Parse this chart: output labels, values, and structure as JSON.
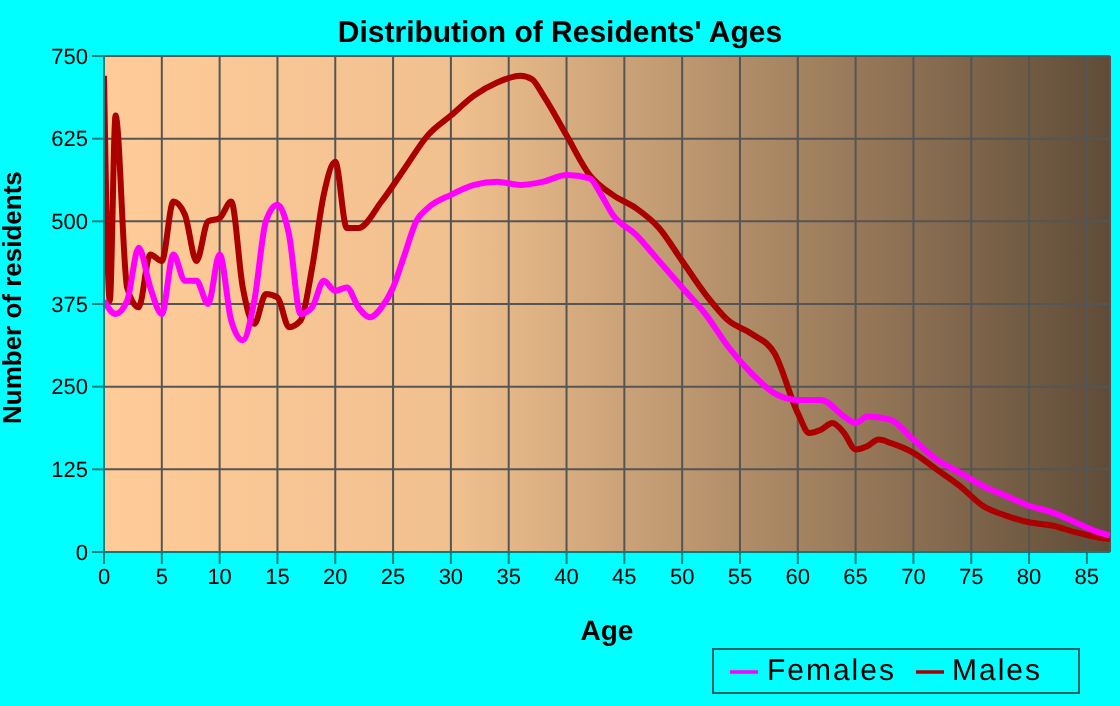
{
  "chart_data": {
    "type": "line",
    "title": "Distribution of Residents' Ages",
    "xlabel": "Age",
    "ylabel": "Number of residents",
    "xlim": [
      0,
      87
    ],
    "xticks": [
      0,
      5,
      10,
      15,
      20,
      25,
      30,
      35,
      40,
      45,
      50,
      55,
      60,
      65,
      70,
      75,
      80,
      85
    ],
    "ylim": [
      0,
      750
    ],
    "yticks": [
      0,
      125,
      250,
      375,
      500,
      625,
      750
    ],
    "grid": true,
    "legend": "bottom right",
    "marker": "none",
    "line_style": "solid",
    "series": [
      {
        "name": "Males",
        "color": "#aa0000",
        "x": [
          0,
          0.5,
          1,
          2,
          3,
          4,
          5,
          6,
          7,
          8,
          9,
          10,
          11,
          12,
          13,
          14,
          15,
          16,
          17,
          18,
          19,
          20,
          21,
          22,
          24,
          26,
          28,
          30,
          32,
          34,
          36,
          37,
          38,
          40,
          42,
          44,
          46,
          48,
          50,
          52,
          54,
          56,
          58,
          60,
          61,
          62,
          63,
          64,
          65,
          66,
          67,
          68,
          70,
          72,
          74,
          76,
          78,
          80,
          82,
          84,
          86,
          87
        ],
        "values": [
          720,
          380,
          660,
          400,
          370,
          450,
          440,
          530,
          510,
          440,
          500,
          505,
          530,
          400,
          345,
          390,
          385,
          340,
          350,
          430,
          540,
          590,
          490,
          490,
          530,
          580,
          630,
          660,
          690,
          710,
          720,
          715,
          690,
          630,
          570,
          540,
          520,
          490,
          440,
          390,
          350,
          330,
          300,
          210,
          180,
          185,
          195,
          180,
          155,
          160,
          170,
          165,
          150,
          125,
          100,
          70,
          55,
          45,
          40,
          30,
          22,
          20
        ]
      },
      {
        "name": "Females",
        "color": "#ff00ff",
        "x": [
          0,
          1,
          2,
          3,
          4,
          5,
          6,
          7,
          8,
          9,
          10,
          11,
          12,
          13,
          14,
          15,
          16,
          17,
          18,
          19,
          20,
          21,
          22,
          23,
          24,
          25,
          26,
          27,
          28,
          30,
          32,
          34,
          36,
          38,
          40,
          42,
          43,
          44,
          46,
          48,
          50,
          52,
          54,
          56,
          58,
          60,
          62,
          64,
          65,
          66,
          68,
          70,
          72,
          74,
          76,
          78,
          80,
          82,
          84,
          86,
          87
        ],
        "values": [
          380,
          360,
          380,
          460,
          400,
          360,
          450,
          410,
          410,
          375,
          450,
          350,
          320,
          380,
          500,
          525,
          480,
          360,
          370,
          410,
          395,
          400,
          370,
          355,
          370,
          400,
          450,
          500,
          520,
          540,
          555,
          560,
          555,
          560,
          570,
          565,
          540,
          510,
          480,
          440,
          400,
          360,
          310,
          270,
          240,
          230,
          230,
          205,
          195,
          205,
          200,
          170,
          140,
          120,
          100,
          85,
          70,
          60,
          45,
          30,
          25
        ]
      }
    ]
  }
}
